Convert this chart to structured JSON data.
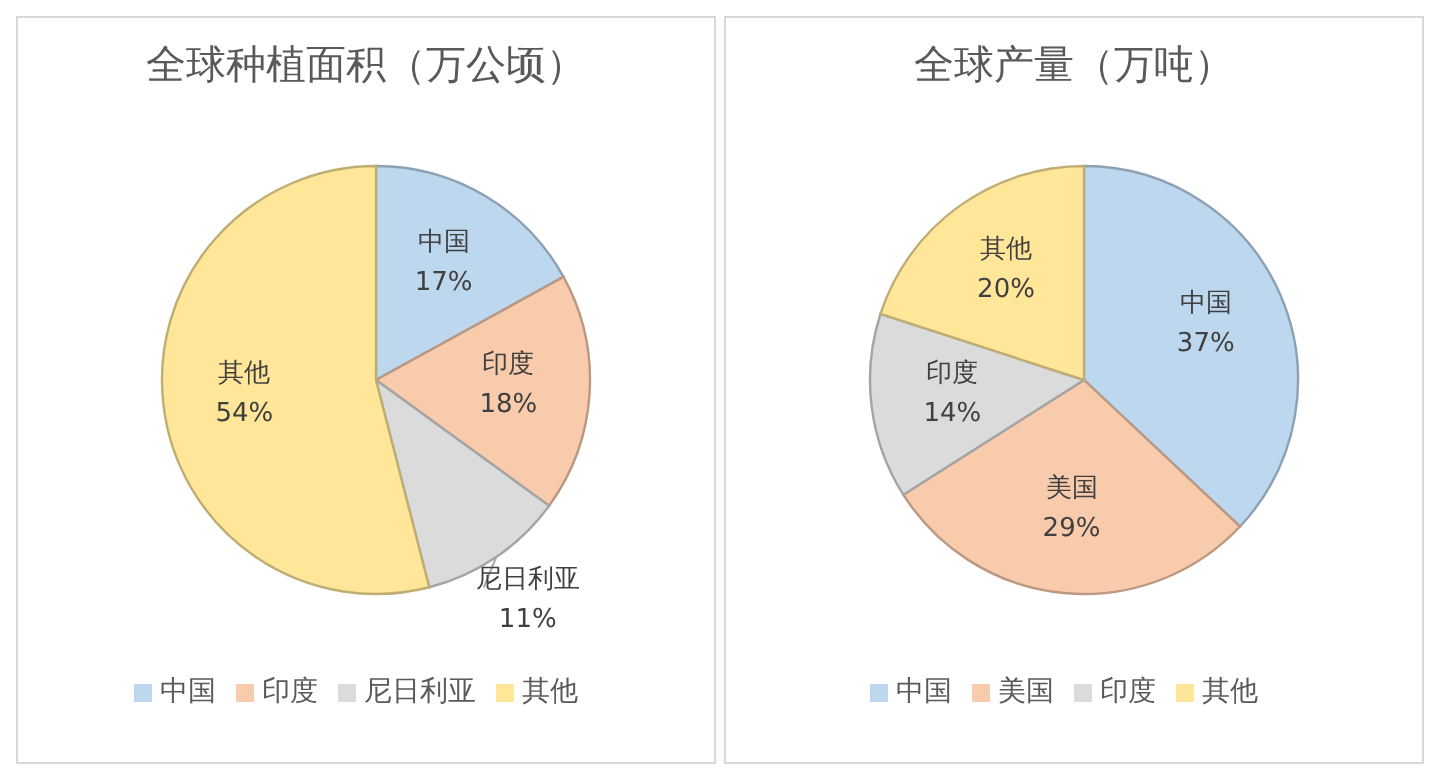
{
  "chart_data": [
    {
      "type": "pie",
      "title": "全球种植面积（万公顷）",
      "categories": [
        "中国",
        "印度",
        "尼日利亚",
        "其他"
      ],
      "values": [
        17,
        18,
        11,
        54
      ],
      "colors": [
        "#bdd7ee",
        "#f8cbad",
        "#dbdbdb",
        "#ffe699"
      ],
      "legend": "bottom",
      "value_labels": [
        "17%",
        "18%",
        "11%",
        "54%"
      ]
    },
    {
      "type": "pie",
      "title": "全球产量（万吨）",
      "categories": [
        "中国",
        "美国",
        "印度",
        "其他"
      ],
      "values": [
        37,
        29,
        14,
        20
      ],
      "colors": [
        "#bdd7ee",
        "#f8cbad",
        "#dbdbdb",
        "#ffe699"
      ],
      "legend": "bottom",
      "value_labels": [
        "37%",
        "29%",
        "14%",
        "20%"
      ]
    }
  ]
}
